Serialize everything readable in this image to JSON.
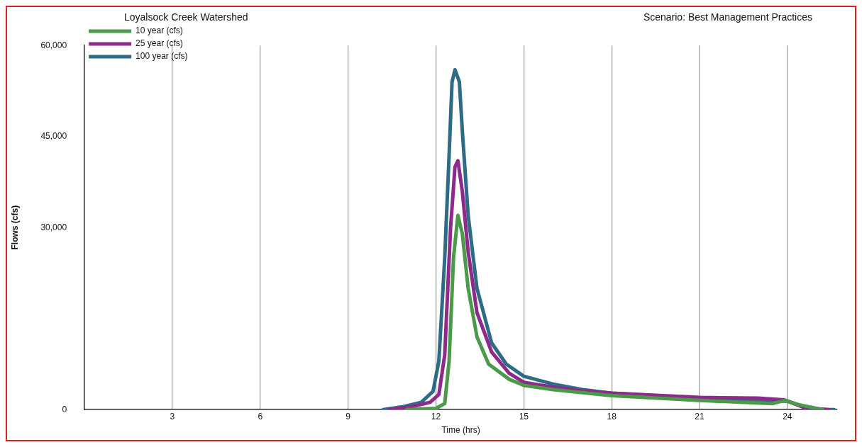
{
  "chart_data": {
    "type": "line",
    "title": "Loyalsock Creek Watershed",
    "subtitle": "Scenario: Best Management Practices",
    "xlabel": "Time (hrs)",
    "ylabel": "Flows (cfs)",
    "xlim": [
      0,
      25.7
    ],
    "xticks": [
      3,
      6,
      9,
      12,
      15,
      18,
      21,
      24
    ],
    "ylim": [
      0,
      60000
    ],
    "yticks": [
      {
        "value": 0,
        "label": "0"
      },
      {
        "value": 30000,
        "label": "30,000"
      },
      {
        "value": 45000,
        "label": "45,000"
      },
      {
        "value": 60000,
        "label": "60,000"
      }
    ],
    "grid": "x",
    "legend": "top left",
    "marker": "none",
    "line_style": "solid",
    "series": [
      {
        "name": "10 year (cfs)",
        "color": "#4a9a4a",
        "x": [
          11.0,
          12.0,
          12.3,
          12.45,
          12.6,
          12.75,
          12.9,
          13.1,
          13.4,
          13.8,
          14.5,
          15,
          16,
          17,
          18,
          21,
          23.5,
          23.9,
          24.4,
          25.2
        ],
        "values": [
          0,
          200,
          1000,
          8000,
          25000,
          32000,
          29000,
          20000,
          12000,
          7500,
          5000,
          4000,
          3300,
          2800,
          2300,
          1500,
          1000,
          1500,
          800,
          0
        ]
      },
      {
        "name": "25 year (cfs)",
        "color": "#8e2a8a",
        "x": [
          10.4,
          11.2,
          11.8,
          12.1,
          12.3,
          12.5,
          12.65,
          12.75,
          12.9,
          13.1,
          13.4,
          13.9,
          14.5,
          15,
          16,
          17,
          18,
          21,
          23,
          23.9,
          24.6,
          25.4
        ],
        "values": [
          0,
          500,
          1200,
          2500,
          9000,
          30000,
          40000,
          41000,
          36000,
          26000,
          16000,
          9500,
          6000,
          4500,
          3700,
          3100,
          2700,
          2000,
          1900,
          1600,
          300,
          0
        ]
      },
      {
        "name": "100 year (cfs)",
        "color": "#2f6a87",
        "x": [
          10.2,
          10.9,
          11.5,
          11.9,
          12.1,
          12.3,
          12.45,
          12.55,
          12.65,
          12.8,
          12.9,
          13.1,
          13.4,
          13.9,
          14.4,
          15,
          16,
          17,
          18,
          21,
          23.5,
          24,
          24.8,
          25.6
        ],
        "values": [
          0,
          500,
          1200,
          3000,
          8000,
          25000,
          42000,
          54000,
          56000,
          54000,
          46000,
          32000,
          20000,
          11000,
          7500,
          5500,
          4200,
          3300,
          2700,
          1900,
          1400,
          1400,
          0,
          0
        ]
      }
    ]
  }
}
